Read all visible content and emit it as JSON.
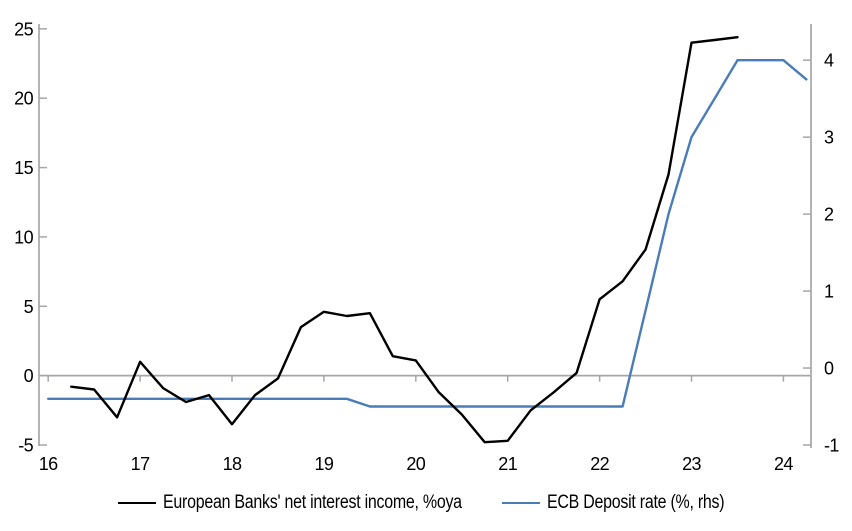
{
  "chart_data": {
    "type": "line",
    "title": "",
    "grid": "zero-line-only",
    "legend_position": "bottom-center",
    "axis_color": "#a6a6a6",
    "x_axis": {
      "ticks": [
        16,
        17,
        18,
        19,
        20,
        21,
        22,
        23,
        24
      ],
      "range": [
        15.9,
        24.3
      ]
    },
    "left_axis": {
      "ticks": [
        -5,
        0,
        5,
        10,
        15,
        20,
        25
      ],
      "range": [
        -5,
        25.35
      ]
    },
    "right_axis": {
      "ticks": [
        -1,
        0,
        1,
        2,
        3,
        4
      ],
      "range": [
        -1,
        4.47
      ]
    },
    "series": [
      {
        "name": "European Banks' net interest income, %oya",
        "axis": "left",
        "color": "#000000",
        "x": [
          16.25,
          16.5,
          16.75,
          17.0,
          17.25,
          17.5,
          17.75,
          18.0,
          18.25,
          18.5,
          18.75,
          19.0,
          19.25,
          19.5,
          19.75,
          20.0,
          20.25,
          20.5,
          20.75,
          21.0,
          21.25,
          21.5,
          21.75,
          22.0,
          22.25,
          22.5,
          22.75,
          23.0,
          23.25,
          23.5
        ],
        "values": [
          -0.8,
          -1.0,
          -3.0,
          1.0,
          -0.9,
          -1.9,
          -1.4,
          -3.5,
          -1.4,
          -0.2,
          3.5,
          4.6,
          4.3,
          4.5,
          1.4,
          1.1,
          -1.2,
          -2.8,
          -4.8,
          -4.7,
          -2.5,
          -1.2,
          0.2,
          5.5,
          6.8,
          9.1,
          14.5,
          24.0,
          24.2,
          24.4
        ]
      },
      {
        "name": "ECB Deposit rate (%, rhs)",
        "axis": "right",
        "color": "#4a7db8",
        "x": [
          16.0,
          16.25,
          16.5,
          16.75,
          17.0,
          17.25,
          17.5,
          17.75,
          18.0,
          18.25,
          18.5,
          18.75,
          19.0,
          19.25,
          19.5,
          19.75,
          20.0,
          20.25,
          20.5,
          20.75,
          21.0,
          21.25,
          21.5,
          21.75,
          22.0,
          22.25,
          22.5,
          22.75,
          23.0,
          23.25,
          23.5,
          23.75,
          24.0,
          24.25
        ],
        "values": [
          -0.4,
          -0.4,
          -0.4,
          -0.4,
          -0.4,
          -0.4,
          -0.4,
          -0.4,
          -0.4,
          -0.4,
          -0.4,
          -0.4,
          -0.4,
          -0.4,
          -0.5,
          -0.5,
          -0.5,
          -0.5,
          -0.5,
          -0.5,
          -0.5,
          -0.5,
          -0.5,
          -0.5,
          -0.5,
          -0.5,
          0.75,
          2.0,
          3.0,
          3.5,
          4.0,
          4.0,
          4.0,
          3.75
        ]
      }
    ]
  }
}
